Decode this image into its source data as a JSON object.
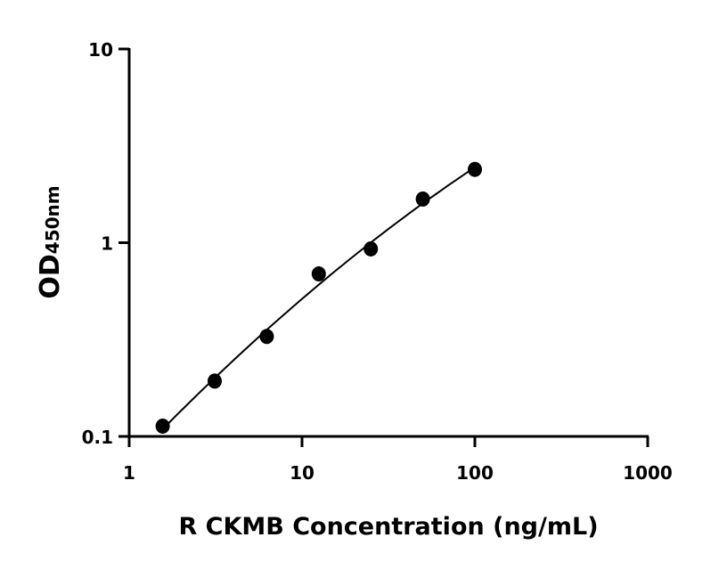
{
  "chart_data": {
    "type": "scatter",
    "xlabel": "R CKMB Concentration (ng/mL)",
    "ylabel": "OD",
    "ylabel_subscript": "450nm",
    "x_scale": "log",
    "y_scale": "log",
    "xlim": [
      1,
      1000
    ],
    "ylim": [
      0.1,
      10
    ],
    "x_ticks": [
      "1",
      "10",
      "100",
      "1000"
    ],
    "y_ticks": [
      "0.1",
      "1",
      "10"
    ],
    "grid": false,
    "fit_curve": true,
    "point_color": "#000000",
    "series": [
      {
        "x": [
          1.5625,
          3.125,
          6.25,
          12.5,
          25,
          50,
          100
        ],
        "y": [
          0.113,
          0.193,
          0.328,
          0.69,
          0.929,
          1.68,
          2.39
        ]
      }
    ]
  }
}
